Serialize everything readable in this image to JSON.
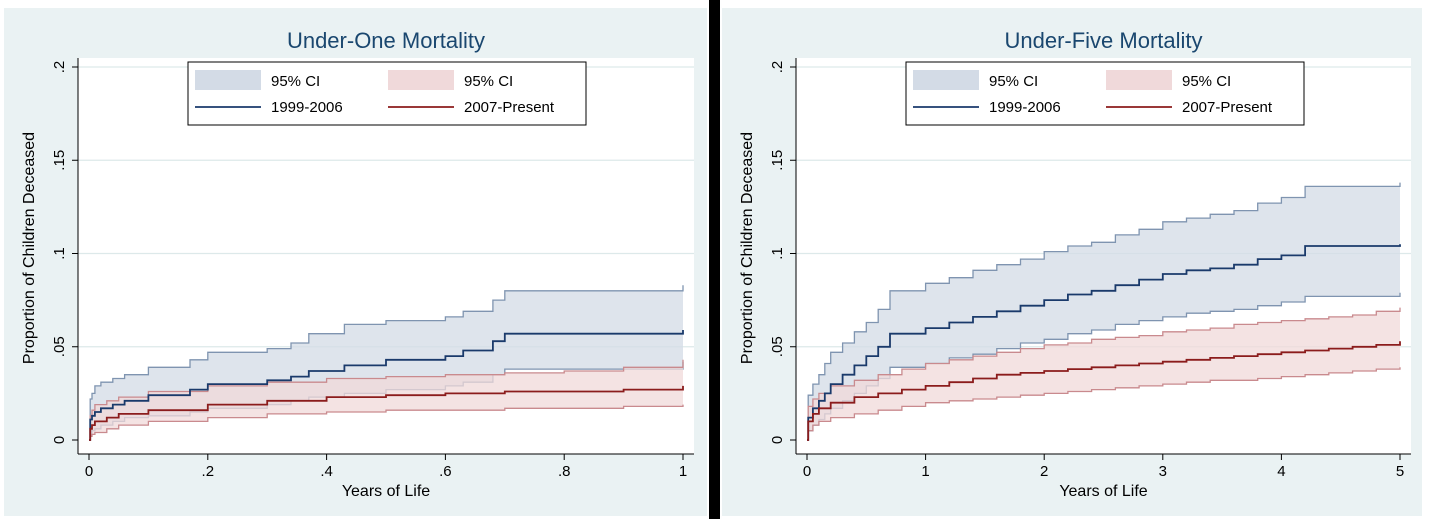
{
  "colors": {
    "panel_bg": "#eaf2f3",
    "plot_bg": "#ffffff",
    "grid": "#dde9ea",
    "title": "#1a476f",
    "series_a_line": "#1a3a6b",
    "series_a_band": "#d3dbe6",
    "series_a_band_edge": "#7f94b0",
    "series_b_line": "#8b1c1c",
    "series_b_band": "#f0d9da",
    "series_b_band_edge": "#c98a8e"
  },
  "chart_data": [
    {
      "type": "line",
      "title": "Under-One Mortality",
      "xlabel": "Years of Life",
      "ylabel": "Proportion of Children Deceased",
      "xlim": [
        0,
        1
      ],
      "ylim": [
        0,
        0.2
      ],
      "x_ticks": [
        0,
        0.2,
        0.4,
        0.6,
        0.8,
        1
      ],
      "x_tick_labels": [
        "0",
        ".2",
        ".4",
        ".6",
        ".8",
        "1"
      ],
      "y_ticks": [
        0,
        0.05,
        0.1,
        0.15,
        0.2
      ],
      "y_tick_labels": [
        "0",
        ".05",
        ".1",
        ".15",
        ".2"
      ],
      "grid": true,
      "legend": {
        "position": "top-center",
        "entries": [
          {
            "label": "95% CI",
            "kind": "band",
            "series": 0
          },
          {
            "label": "95% CI",
            "kind": "band",
            "series": 1
          },
          {
            "label": "1999-2006",
            "kind": "line",
            "series": 0
          },
          {
            "label": "2007-Present",
            "kind": "line",
            "series": 1
          }
        ]
      },
      "series": [
        {
          "name": "1999-2006",
          "x": [
            0,
            0.002,
            0.005,
            0.01,
            0.02,
            0.04,
            0.06,
            0.1,
            0.17,
            0.2,
            0.3,
            0.34,
            0.37,
            0.43,
            0.5,
            0.6,
            0.63,
            0.68,
            0.7,
            1
          ],
          "y": [
            0,
            0.011,
            0.013,
            0.015,
            0.017,
            0.019,
            0.021,
            0.024,
            0.027,
            0.03,
            0.032,
            0.034,
            0.037,
            0.04,
            0.043,
            0.045,
            0.048,
            0.053,
            0.057,
            0.059
          ],
          "lower": [
            0,
            0.003,
            0.005,
            0.006,
            0.008,
            0.01,
            0.012,
            0.013,
            0.015,
            0.017,
            0.019,
            0.021,
            0.023,
            0.025,
            0.027,
            0.029,
            0.031,
            0.035,
            0.038,
            0.042
          ],
          "upper": [
            0,
            0.022,
            0.025,
            0.029,
            0.031,
            0.033,
            0.035,
            0.039,
            0.043,
            0.047,
            0.049,
            0.052,
            0.057,
            0.062,
            0.064,
            0.066,
            0.069,
            0.075,
            0.08,
            0.083
          ]
        },
        {
          "name": "2007-Present",
          "x": [
            0,
            0.002,
            0.005,
            0.01,
            0.03,
            0.05,
            0.1,
            0.2,
            0.3,
            0.4,
            0.5,
            0.6,
            0.7,
            0.8,
            0.9,
            1
          ],
          "y": [
            0,
            0.006,
            0.008,
            0.01,
            0.012,
            0.014,
            0.016,
            0.019,
            0.021,
            0.023,
            0.024,
            0.025,
            0.026,
            0.026,
            0.027,
            0.029
          ],
          "lower": [
            0,
            0.002,
            0.003,
            0.004,
            0.006,
            0.008,
            0.01,
            0.012,
            0.014,
            0.015,
            0.016,
            0.016,
            0.017,
            0.017,
            0.018,
            0.019
          ],
          "upper": [
            0,
            0.013,
            0.016,
            0.019,
            0.021,
            0.023,
            0.026,
            0.029,
            0.031,
            0.033,
            0.034,
            0.035,
            0.036,
            0.037,
            0.039,
            0.043
          ]
        }
      ]
    },
    {
      "type": "line",
      "title": "Under-Five Mortality",
      "xlabel": "Years of Life",
      "ylabel": "Proportion of Children Deceased",
      "xlim": [
        0,
        5
      ],
      "ylim": [
        0,
        0.2
      ],
      "x_ticks": [
        0,
        1,
        2,
        3,
        4,
        5
      ],
      "x_tick_labels": [
        "0",
        "1",
        "2",
        "3",
        "4",
        "5"
      ],
      "y_ticks": [
        0,
        0.05,
        0.1,
        0.15,
        0.2
      ],
      "y_tick_labels": [
        "0",
        ".05",
        ".1",
        ".15",
        ".2"
      ],
      "grid": true,
      "legend": {
        "position": "top-center",
        "entries": [
          {
            "label": "95% CI",
            "kind": "band",
            "series": 0
          },
          {
            "label": "95% CI",
            "kind": "band",
            "series": 1
          },
          {
            "label": "1999-2006",
            "kind": "line",
            "series": 0
          },
          {
            "label": "2007-Present",
            "kind": "line",
            "series": 1
          }
        ]
      },
      "series": [
        {
          "name": "1999-2006",
          "x": [
            0,
            0.01,
            0.05,
            0.1,
            0.15,
            0.2,
            0.3,
            0.4,
            0.5,
            0.6,
            0.7,
            1.0,
            1.2,
            1.4,
            1.6,
            1.8,
            2.0,
            2.2,
            2.4,
            2.6,
            2.8,
            3.0,
            3.2,
            3.4,
            3.6,
            3.8,
            4.0,
            4.2,
            5.0
          ],
          "y": [
            0,
            0.012,
            0.017,
            0.021,
            0.025,
            0.03,
            0.035,
            0.04,
            0.045,
            0.05,
            0.057,
            0.06,
            0.063,
            0.066,
            0.069,
            0.072,
            0.075,
            0.078,
            0.08,
            0.083,
            0.086,
            0.089,
            0.091,
            0.092,
            0.094,
            0.097,
            0.099,
            0.104,
            0.105
          ],
          "lower": [
            0,
            0.005,
            0.008,
            0.011,
            0.014,
            0.017,
            0.021,
            0.025,
            0.029,
            0.033,
            0.039,
            0.041,
            0.044,
            0.046,
            0.049,
            0.052,
            0.054,
            0.057,
            0.059,
            0.062,
            0.064,
            0.066,
            0.068,
            0.069,
            0.07,
            0.072,
            0.074,
            0.077,
            0.079
          ],
          "upper": [
            0,
            0.024,
            0.03,
            0.035,
            0.041,
            0.047,
            0.052,
            0.058,
            0.063,
            0.07,
            0.08,
            0.084,
            0.087,
            0.091,
            0.094,
            0.097,
            0.101,
            0.104,
            0.106,
            0.11,
            0.113,
            0.117,
            0.119,
            0.121,
            0.123,
            0.127,
            0.13,
            0.136,
            0.138
          ]
        },
        {
          "name": "2007-Present",
          "x": [
            0,
            0.01,
            0.05,
            0.1,
            0.2,
            0.4,
            0.6,
            0.8,
            1.0,
            1.2,
            1.4,
            1.6,
            1.8,
            2.0,
            2.2,
            2.4,
            2.6,
            2.8,
            3.0,
            3.2,
            3.4,
            3.6,
            3.8,
            4.0,
            4.2,
            4.4,
            4.6,
            4.8,
            5.0
          ],
          "y": [
            0,
            0.01,
            0.014,
            0.017,
            0.02,
            0.023,
            0.025,
            0.027,
            0.029,
            0.031,
            0.033,
            0.035,
            0.036,
            0.037,
            0.038,
            0.039,
            0.04,
            0.041,
            0.042,
            0.043,
            0.044,
            0.045,
            0.046,
            0.047,
            0.048,
            0.049,
            0.05,
            0.051,
            0.053
          ],
          "lower": [
            0,
            0.005,
            0.008,
            0.01,
            0.012,
            0.014,
            0.016,
            0.018,
            0.02,
            0.021,
            0.022,
            0.023,
            0.024,
            0.025,
            0.026,
            0.027,
            0.028,
            0.029,
            0.03,
            0.031,
            0.032,
            0.032,
            0.033,
            0.034,
            0.035,
            0.036,
            0.037,
            0.038,
            0.039
          ],
          "upper": [
            0,
            0.018,
            0.022,
            0.025,
            0.029,
            0.032,
            0.035,
            0.038,
            0.041,
            0.043,
            0.045,
            0.047,
            0.049,
            0.051,
            0.052,
            0.054,
            0.055,
            0.056,
            0.058,
            0.059,
            0.06,
            0.062,
            0.063,
            0.064,
            0.065,
            0.066,
            0.067,
            0.069,
            0.071
          ]
        }
      ]
    }
  ]
}
